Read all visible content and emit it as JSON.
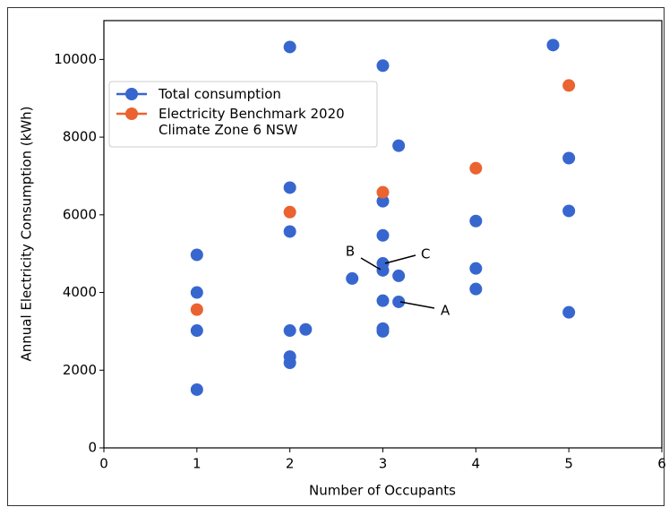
{
  "chart_data": {
    "type": "scatter",
    "xlabel": "Number of Occupants",
    "ylabel": "Annual Electricity Consumption (kWh)",
    "xlim": [
      0,
      6
    ],
    "ylim": [
      0,
      11000
    ],
    "xticks": [
      0,
      1,
      2,
      3,
      4,
      5,
      6
    ],
    "yticks": [
      0,
      2000,
      4000,
      6000,
      8000,
      10000
    ],
    "legend": "upper left",
    "series": [
      {
        "name": "Total consumption",
        "color": "#3766cf",
        "x": [
          1,
          1,
          1,
          1,
          2,
          2,
          2,
          2,
          2,
          2,
          2.17,
          2.67,
          3,
          3,
          3,
          3,
          3,
          3,
          3,
          3,
          3.17,
          3.17,
          3.17,
          4,
          4,
          4,
          4.83,
          5,
          5,
          5
        ],
        "values": [
          4970,
          4000,
          3020,
          1500,
          10320,
          6700,
          5570,
          3020,
          2350,
          2190,
          3050,
          4360,
          9840,
          6350,
          5470,
          4750,
          4570,
          3790,
          3070,
          3000,
          7780,
          4430,
          3760,
          5840,
          4620,
          4090,
          10370,
          7460,
          6100,
          3490
        ]
      },
      {
        "name": "Electricity Benchmark 2020\nClimate Zone 6 NSW",
        "color": "#ea6330",
        "x": [
          1,
          2,
          3,
          4,
          5
        ],
        "values": [
          3560,
          6070,
          6580,
          7200,
          9330
        ]
      }
    ],
    "annotations": [
      "A",
      "B",
      "C"
    ]
  }
}
